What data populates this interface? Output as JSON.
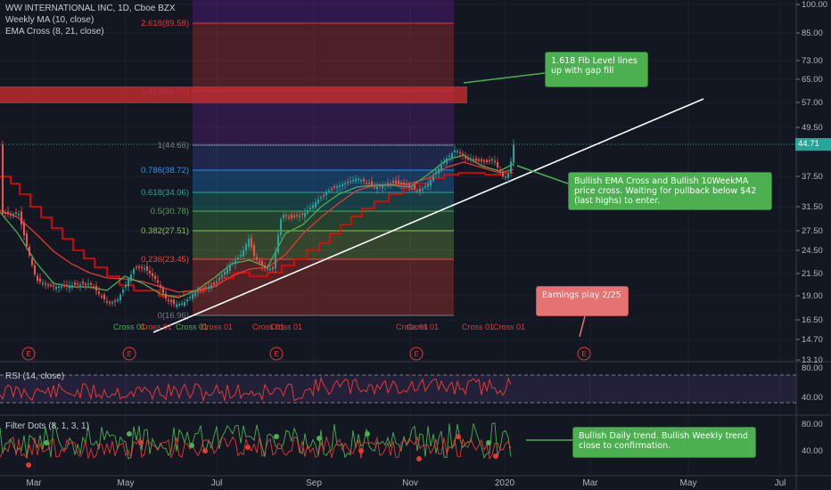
{
  "legend": {
    "symbol": "WW INTERNATIONAL INC, 1D, Cboe BZX",
    "ma": "Weekly MA (10, close)",
    "ema": "EMA Cross (8, 21, close)",
    "rsi": "RSI (14, close)",
    "dots": "Filter Dots (8, 1, 3, 1)"
  },
  "price_axis": [
    "100.00",
    "85.00",
    "73.00",
    "65.00",
    "57.00",
    "49.50",
    "44.71",
    "37.50",
    "31.50",
    "27.50",
    "24.50",
    "21.50",
    "19.00",
    "16.50",
    "14.70",
    "13.10"
  ],
  "current_price": "44.71",
  "rsi_axis": [
    "80.00",
    "40.00"
  ],
  "dots_axis": [
    "80.00",
    "40.00"
  ],
  "time_axis": [
    "Mar",
    "May",
    "Jul",
    "Sep",
    "Nov",
    "2020",
    "Mar",
    "May",
    "Jul"
  ],
  "fib_levels": [
    {
      "label": "2.618(89.58)",
      "color": "#e53935"
    },
    {
      "label": "1.618(61.87)",
      "color": "#7b1fa2"
    },
    {
      "label": "1(44.66)",
      "color": "#787b86"
    },
    {
      "label": "0.786(38.72)",
      "color": "#2196f3"
    },
    {
      "label": "0.618(34.06)",
      "color": "#26a69a"
    },
    {
      "label": "0.5(30.78)",
      "color": "#4caf50"
    },
    {
      "label": "0.382(27.51)",
      "color": "#8bc34a"
    },
    {
      "label": "0.236(23.45)",
      "color": "#f44336"
    },
    {
      "label": "0(16.96)",
      "color": "#787b86"
    }
  ],
  "cross_labels": [
    "Cross 01",
    "Cross 01",
    "Cross 01",
    "Cross 01",
    "Cross 01",
    "Cross 01",
    "Cross 01",
    "Cross 01",
    "Cross 01",
    "Cross 01"
  ],
  "earnings_marker": "E",
  "callouts": {
    "fib": "1.618 Fib Level lines up with gap fill",
    "ema": "Bullish EMA Cross and Bullish 10WeekMA price cross. Waiting for pullback below $42 (last highs) to enter.",
    "earnings": "Earnings play 2/25",
    "trend": "Bullish Daily trend. Bullish Weekly trend close to confirmation."
  },
  "colors": {
    "background": "#131722",
    "up": "#26a69a",
    "down": "#ef5350",
    "ma": "#ff0000",
    "ema_fast": "#4caf50",
    "ema_slow": "#e53935",
    "rsi": "#e53935",
    "callout_green": "#4caf50",
    "callout_red": "#e57373"
  }
}
